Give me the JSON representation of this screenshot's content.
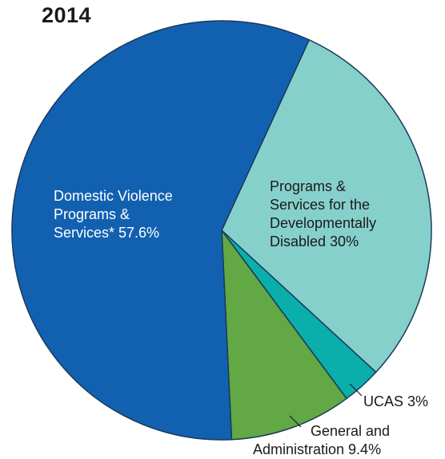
{
  "chart_data": {
    "type": "pie",
    "title": "2014",
    "slices": [
      {
        "label_lines": [
          "Domestic Violence",
          "Programs &",
          "Services*  57.6%"
        ],
        "value": 57.6,
        "color": "#1261b0"
      },
      {
        "label_lines": [
          "Programs &",
          "Services for the",
          "Developmentally",
          "Disabled   30%"
        ],
        "value": 30,
        "color": "#86d0cc"
      },
      {
        "label_lines": [
          "UCAS  3%"
        ],
        "value": 3,
        "color": "#0aaeab"
      },
      {
        "label_lines": [
          "General and",
          "Administration  9.4%"
        ],
        "value": 9.4,
        "color": "#62a844"
      }
    ]
  }
}
